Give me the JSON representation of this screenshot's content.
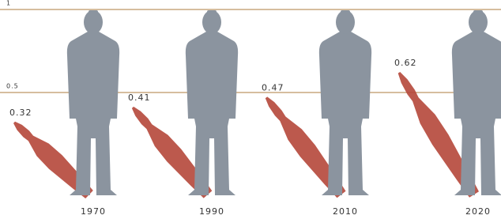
{
  "chart_data": {
    "type": "pictogram",
    "categories": [
      "1970",
      "1990",
      "2010",
      "2020"
    ],
    "values": [
      0.32,
      0.41,
      0.47,
      0.62
    ],
    "color": "#b5473a",
    "ylim": [
      0,
      1
    ],
    "yticks": [
      0.5,
      1
    ],
    "grid": true
  }
}
